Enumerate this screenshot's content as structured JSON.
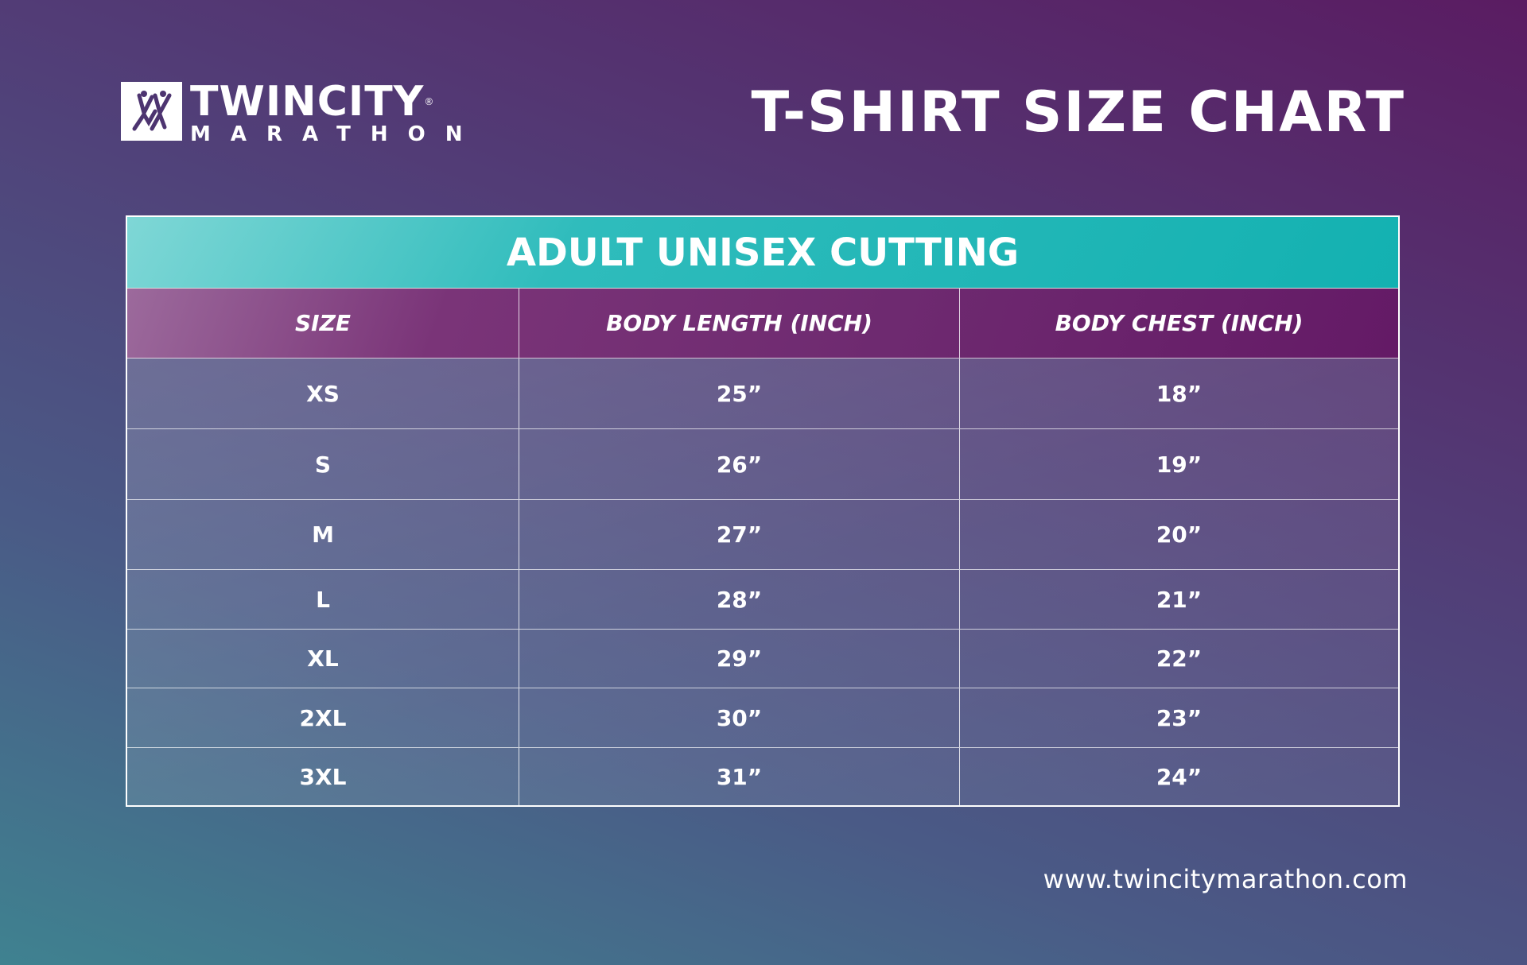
{
  "logo": {
    "line1": "TWINCITY",
    "registered": "®",
    "line2": "MARATHON"
  },
  "title": "T-SHIRT SIZE CHART",
  "table": {
    "caption": "ADULT UNISEX CUTTING",
    "headers": [
      "SIZE",
      "BODY LENGTH (INCH)",
      "BODY CHEST (INCH)"
    ],
    "rows": [
      [
        "XS",
        "25”",
        "18”"
      ],
      [
        "S",
        "26”",
        "19”"
      ],
      [
        "M",
        "27”",
        "20”"
      ],
      [
        "L",
        "28”",
        "21”"
      ],
      [
        "XL",
        "29”",
        "22”"
      ],
      [
        "2XL",
        "30”",
        "23”"
      ],
      [
        "3XL",
        "31”",
        "24”"
      ]
    ]
  },
  "website": "www.twincitymarathon.com",
  "colors": {
    "teal": "#13b1b1",
    "purple": "#6e2a70"
  }
}
